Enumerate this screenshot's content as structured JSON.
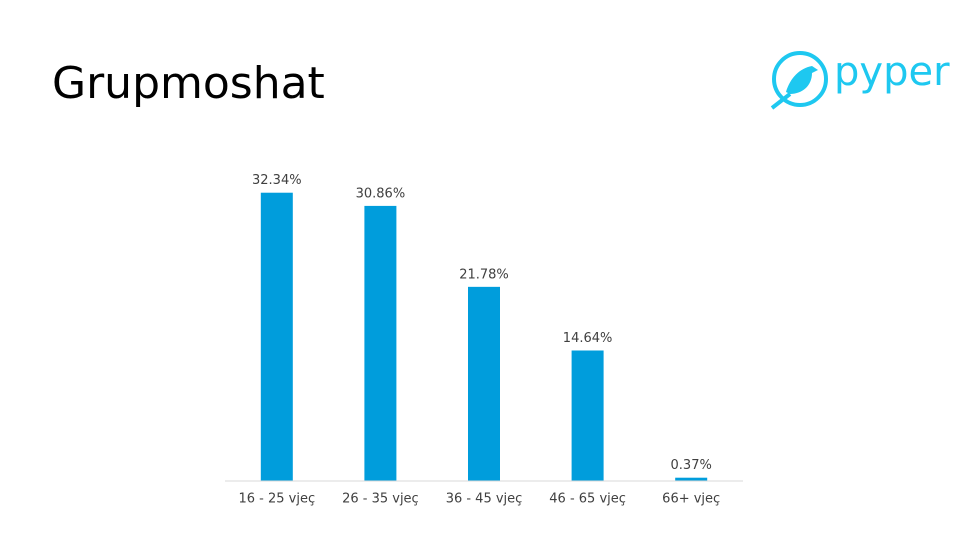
{
  "logo": "pyper",
  "chart_data": {
    "type": "bar",
    "title": "Grupmoshat",
    "categories": [
      "16 - 25 vjeç",
      "26 - 35 vjeç",
      "36 - 45 vjeç",
      "46 - 65 vjeç",
      "66+ vjeç"
    ],
    "values": [
      32.34,
      30.86,
      21.78,
      14.64,
      0.37
    ],
    "value_labels": [
      "32.34%",
      "30.86%",
      "21.78%",
      "14.64%",
      "0.37%"
    ],
    "color": "#009ddc",
    "ylim": [
      0,
      35
    ]
  }
}
